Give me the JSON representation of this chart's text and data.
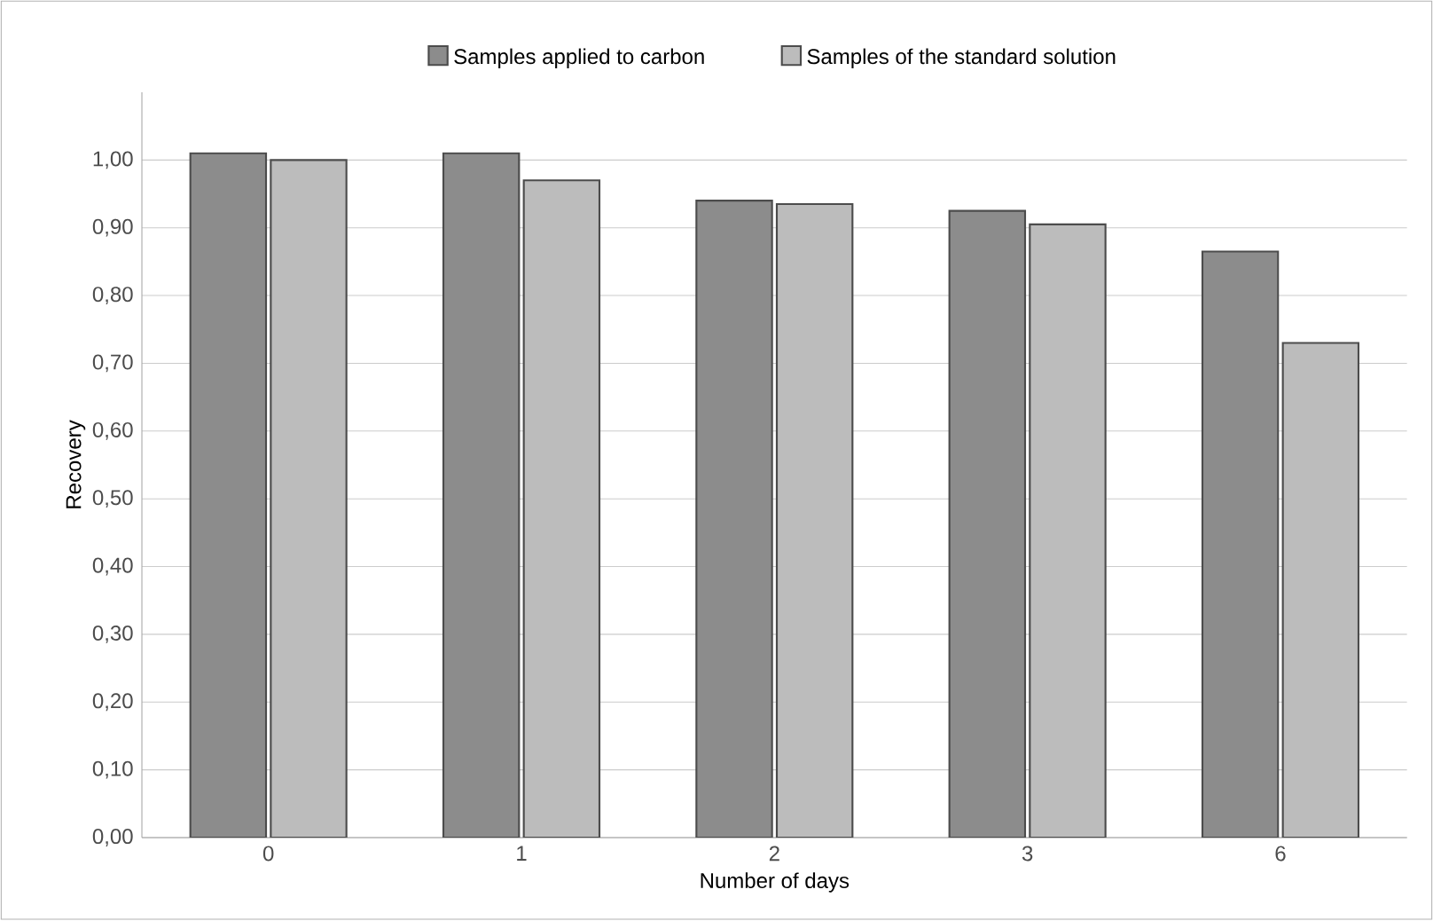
{
  "chart_data": {
    "type": "bar",
    "xlabel": "Number of days",
    "ylabel": "Recovery",
    "categories": [
      "0",
      "1",
      "2",
      "3",
      "6"
    ],
    "series": [
      {
        "name": "Samples applied to carbon",
        "color": "#8c8c8c",
        "values": [
          1.01,
          1.01,
          0.94,
          0.925,
          0.865
        ]
      },
      {
        "name": "Samples of the standard solution",
        "color": "#bcbcbc",
        "values": [
          1.0,
          0.97,
          0.935,
          0.905,
          0.73
        ]
      }
    ],
    "ylim": [
      0,
      1.1
    ],
    "yticks": [
      {
        "value": 0,
        "label": "0,00"
      },
      {
        "value": 0.1,
        "label": "0,10"
      },
      {
        "value": 0.2,
        "label": "0,20"
      },
      {
        "value": 0.3,
        "label": "0,30"
      },
      {
        "value": 0.4,
        "label": "0,40"
      },
      {
        "value": 0.5,
        "label": "0,50"
      },
      {
        "value": 0.6,
        "label": "0,60"
      },
      {
        "value": 0.7,
        "label": "0,70"
      },
      {
        "value": 0.8,
        "label": "0,80"
      },
      {
        "value": 0.9,
        "label": "0,90"
      },
      {
        "value": 1.0,
        "label": "1,00"
      }
    ],
    "grid": "y",
    "legend": "top"
  }
}
